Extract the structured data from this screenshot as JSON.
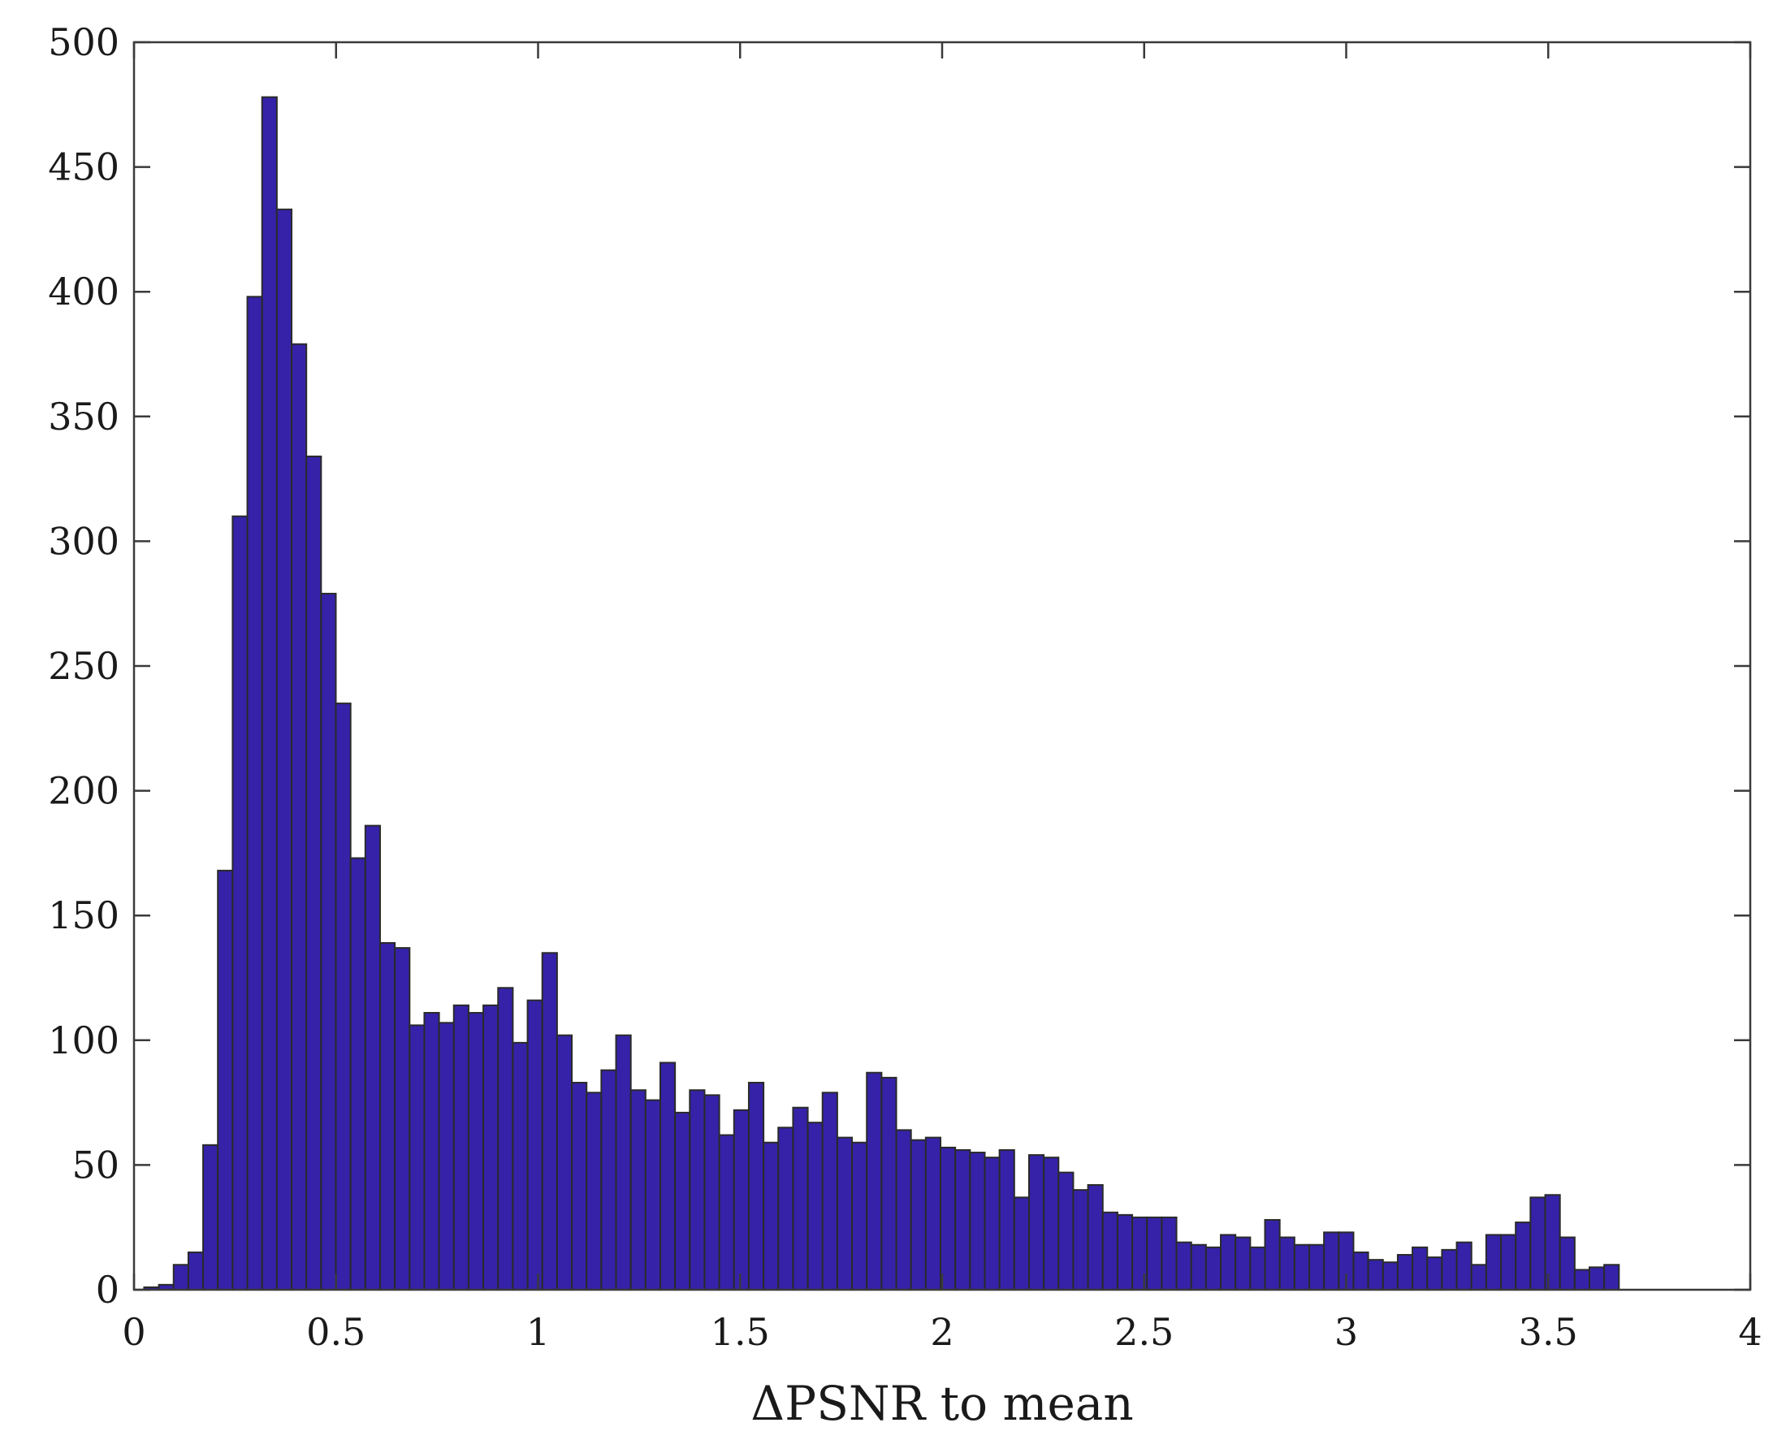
{
  "chart_data": {
    "type": "bar",
    "title": "",
    "xlabel": "ΔPSNR to mean",
    "ylabel": "",
    "xlim": [
      0,
      4
    ],
    "ylim": [
      0,
      500
    ],
    "grid": false,
    "legend": "none",
    "x_ticks": [
      {
        "value": 0,
        "label": "0"
      },
      {
        "value": 0.5,
        "label": "0.5"
      },
      {
        "value": 1,
        "label": "1"
      },
      {
        "value": 1.5,
        "label": "1.5"
      },
      {
        "value": 2,
        "label": "2"
      },
      {
        "value": 2.5,
        "label": "2.5"
      },
      {
        "value": 3,
        "label": "3"
      },
      {
        "value": 3.5,
        "label": "3.5"
      },
      {
        "value": 4,
        "label": "4"
      }
    ],
    "y_ticks": [
      {
        "value": 0,
        "label": "0"
      },
      {
        "value": 50,
        "label": "50"
      },
      {
        "value": 100,
        "label": "100"
      },
      {
        "value": 150,
        "label": "150"
      },
      {
        "value": 200,
        "label": "200"
      },
      {
        "value": 250,
        "label": "250"
      },
      {
        "value": 300,
        "label": "300"
      },
      {
        "value": 350,
        "label": "350"
      },
      {
        "value": 400,
        "label": "400"
      },
      {
        "value": 450,
        "label": "450"
      },
      {
        "value": 500,
        "label": "500"
      }
    ],
    "bin_start": 0.025,
    "bin_width": 0.0365,
    "counts": [
      1,
      2,
      10,
      15,
      58,
      168,
      310,
      398,
      478,
      433,
      379,
      334,
      279,
      235,
      173,
      186,
      139,
      137,
      106,
      111,
      107,
      114,
      111,
      114,
      121,
      99,
      116,
      135,
      102,
      83,
      79,
      88,
      102,
      80,
      76,
      91,
      71,
      80,
      78,
      62,
      72,
      83,
      59,
      65,
      73,
      67,
      79,
      61,
      59,
      87,
      85,
      64,
      60,
      61,
      57,
      56,
      55,
      53,
      56,
      37,
      54,
      53,
      47,
      40,
      42,
      31,
      30,
      29,
      29,
      29,
      19,
      18,
      17,
      22,
      21,
      17,
      28,
      21,
      18,
      18,
      23,
      23,
      15,
      12,
      11,
      14,
      17,
      13,
      16,
      19,
      10,
      22,
      22,
      27,
      37,
      38,
      21,
      8,
      9,
      10
    ],
    "colors": {
      "bar_fill": "#3522a9",
      "bar_edge": "#2a2a2a",
      "axis": "#3a3a3a"
    }
  }
}
